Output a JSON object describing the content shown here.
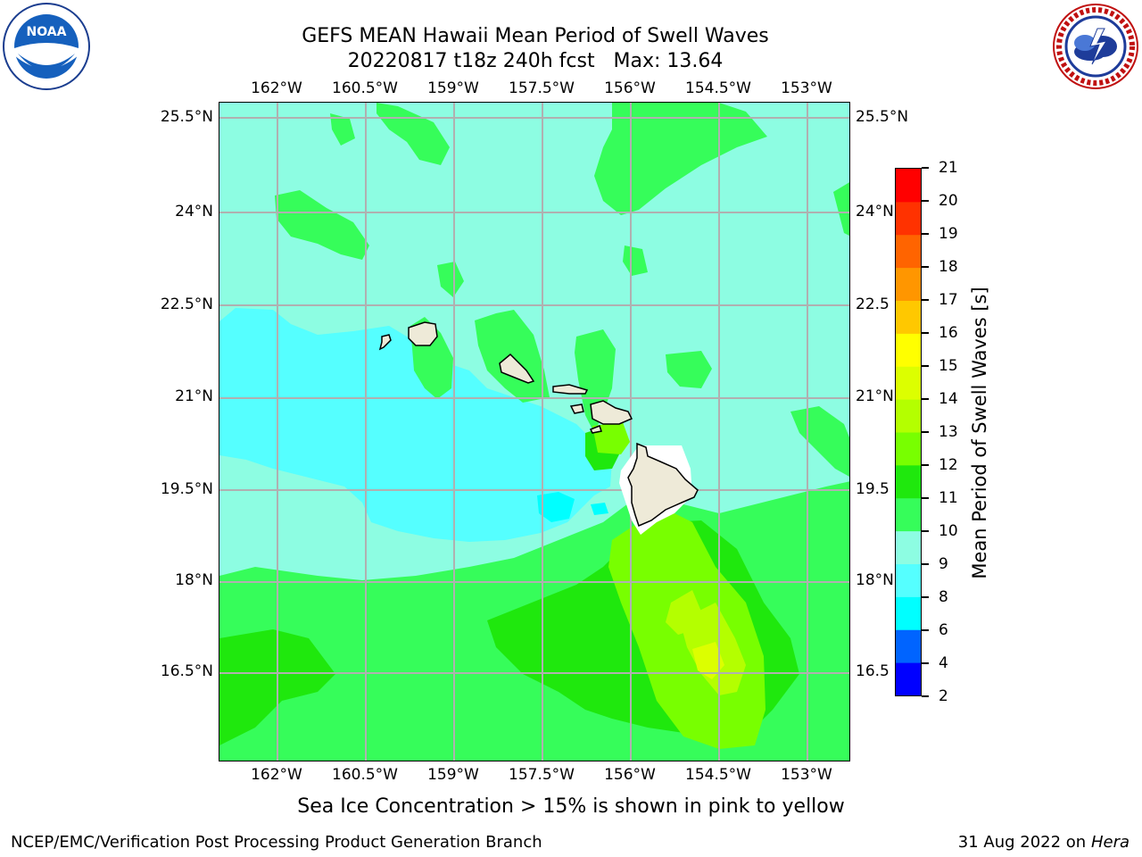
{
  "title": {
    "line1": "GEFS MEAN Hawaii Mean Period of Swell Waves",
    "line2": "20220817 t18z 240h fcst   Max: 13.64"
  },
  "logos": {
    "left": {
      "icon": "noaa-logo",
      "text": "NOAA",
      "ring_text": "NATIONAL OCEANIC AND ATMOSPHERIC ADMINISTRATION · U.S. DEPARTMENT OF COMMERCE"
    },
    "right": {
      "icon": "nws-logo",
      "ring_text": "NATIONAL WEATHER SERVICE"
    }
  },
  "map": {
    "lon_labels": [
      "162°W",
      "160.5°W",
      "159°W",
      "157.5°W",
      "156°W",
      "154.5°W",
      "153°W"
    ],
    "lat_labels": [
      "25.5°N",
      "24°N",
      "22.5°N",
      "21°N",
      "19.5°N",
      "18°N",
      "16.5°N"
    ],
    "lat_labels_right": [
      "25.5°N",
      "24°N",
      "22.5",
      "21°N",
      "19.5",
      "18°N",
      "16.5"
    ],
    "ocean_color": "#8dfde2",
    "land_color": "#eeead8",
    "grid_color": "#b0b0b0",
    "max_value": 13.64
  },
  "colorbar": {
    "label": "Mean Period of Swell Waves [s]",
    "ticks": [
      "21",
      "20",
      "19",
      "18",
      "17",
      "16",
      "15",
      "14",
      "13",
      "12",
      "11",
      "10",
      "9",
      "8",
      "6",
      "4",
      "2"
    ],
    "colors_bottom_to_top": [
      "#0000ff",
      "#0064ff",
      "#00ffff",
      "#55ffff",
      "#8dfde2",
      "#36fd5a",
      "#1fe80d",
      "#78ff00",
      "#b4ff00",
      "#dcff00",
      "#ffff00",
      "#ffc800",
      "#ff9600",
      "#ff6400",
      "#ff3200",
      "#ff0000"
    ]
  },
  "sea_ice_note": "Sea Ice Concentration > 15% is shown in pink to yellow",
  "footer": {
    "left": "NCEP/EMC/Verification Post Processing Product Generation Branch",
    "right_date": "31 Aug 2022 on",
    "right_host": "Hera"
  }
}
